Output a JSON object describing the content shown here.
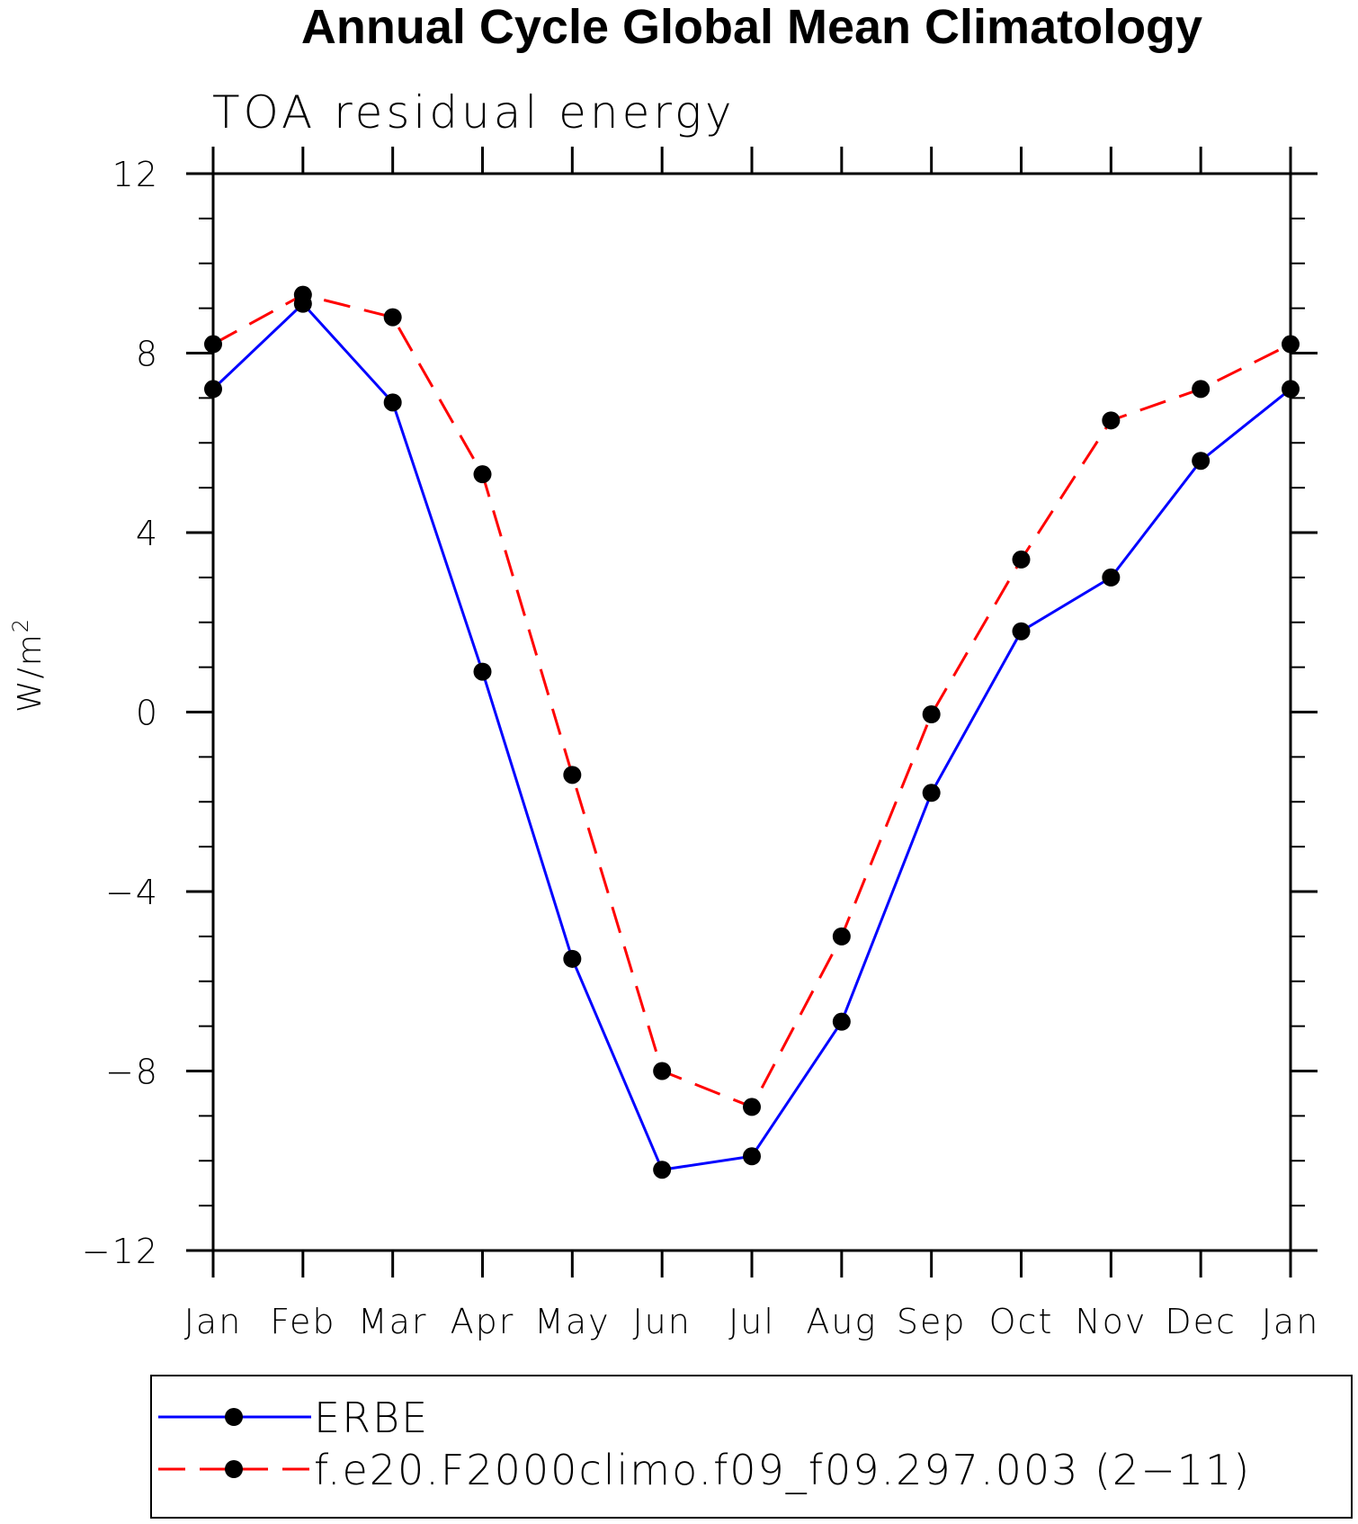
{
  "chart_data": {
    "type": "line",
    "title": "Annual Cycle Global Mean Climatology",
    "subtitle": "TOA residual energy",
    "ylabel": "W/m",
    "ylabel_sup": "2",
    "xlabel": "",
    "categories": [
      "Jan",
      "Feb",
      "Mar",
      "Apr",
      "May",
      "Jun",
      "Jul",
      "Aug",
      "Sep",
      "Oct",
      "Nov",
      "Dec",
      "Jan"
    ],
    "ylim": [
      -12,
      12
    ],
    "yticks": [
      12,
      8,
      4,
      0,
      -4,
      -8,
      -12
    ],
    "ytick_labels": [
      "12",
      "8",
      "4",
      "0",
      "−4",
      "−8",
      "−12"
    ],
    "series": [
      {
        "name": "ERBE",
        "color": "#0000ff",
        "style": "solid",
        "values": [
          7.2,
          9.1,
          6.9,
          0.9,
          -5.5,
          -10.2,
          -9.9,
          -6.9,
          -1.8,
          1.8,
          3.0,
          5.6,
          7.2
        ]
      },
      {
        "name": "f.e20.F2000climo.f09_f09.297.003 (2−11)",
        "color": "#ff0000",
        "style": "dashed",
        "values": [
          8.2,
          9.3,
          8.8,
          5.3,
          -1.4,
          -8.0,
          -8.8,
          -5.0,
          -0.05,
          3.4,
          6.5,
          7.2,
          8.2
        ]
      }
    ],
    "legend_position": "bottom"
  }
}
